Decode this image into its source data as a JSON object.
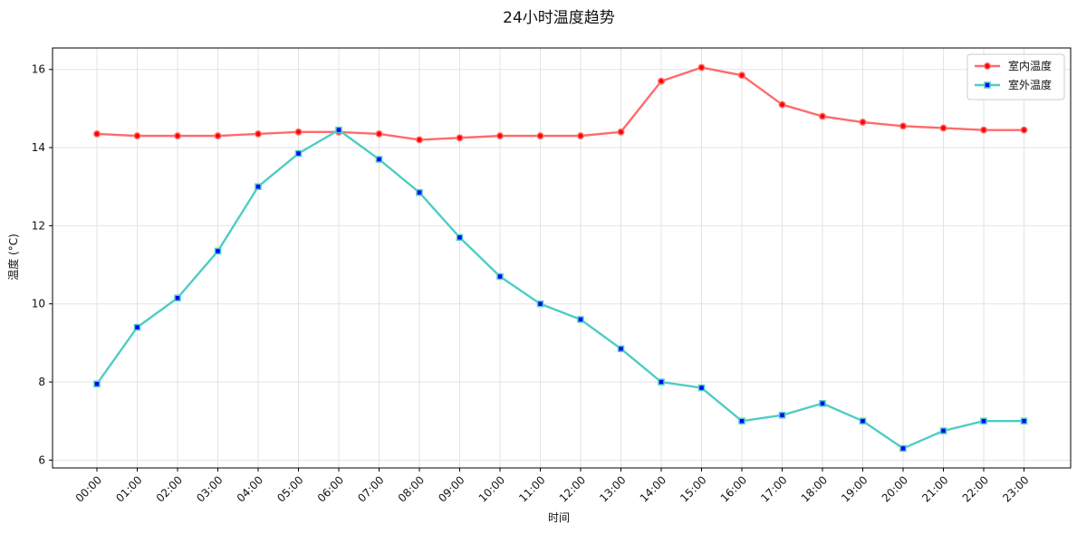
{
  "chart_data": {
    "type": "line",
    "title": "24小时温度趋势",
    "xlabel": "时间",
    "ylabel": "温度 (°C)",
    "ylim": [
      5.8,
      16.55
    ],
    "yticks": [
      6,
      8,
      10,
      12,
      14,
      16
    ],
    "grid": true,
    "legend_position": "top-right",
    "categories": [
      "00:00",
      "01:00",
      "02:00",
      "03:00",
      "04:00",
      "05:00",
      "06:00",
      "07:00",
      "08:00",
      "09:00",
      "10:00",
      "11:00",
      "12:00",
      "13:00",
      "14:00",
      "15:00",
      "16:00",
      "17:00",
      "18:00",
      "19:00",
      "20:00",
      "21:00",
      "22:00",
      "23:00"
    ],
    "series": [
      {
        "name": "室内温度",
        "color": "#ff6b6b",
        "marker": "circle",
        "marker_color": "#ff0000",
        "values": [
          14.35,
          14.3,
          14.3,
          14.3,
          14.35,
          14.4,
          14.4,
          14.35,
          14.2,
          14.25,
          14.3,
          14.3,
          14.3,
          14.4,
          15.7,
          16.05,
          15.85,
          15.1,
          14.8,
          14.65,
          14.55,
          14.5,
          14.45,
          14.45
        ]
      },
      {
        "name": "室外温度",
        "color": "#4ecdc4",
        "marker": "square",
        "marker_color": "#0000ff",
        "values": [
          7.95,
          9.4,
          10.15,
          11.35,
          13.0,
          13.85,
          14.45,
          13.7,
          12.85,
          11.7,
          10.7,
          10.0,
          9.6,
          8.85,
          8.0,
          7.85,
          7.0,
          7.15,
          7.45,
          7.0,
          6.3,
          6.75,
          7.0,
          7.0
        ]
      }
    ]
  }
}
